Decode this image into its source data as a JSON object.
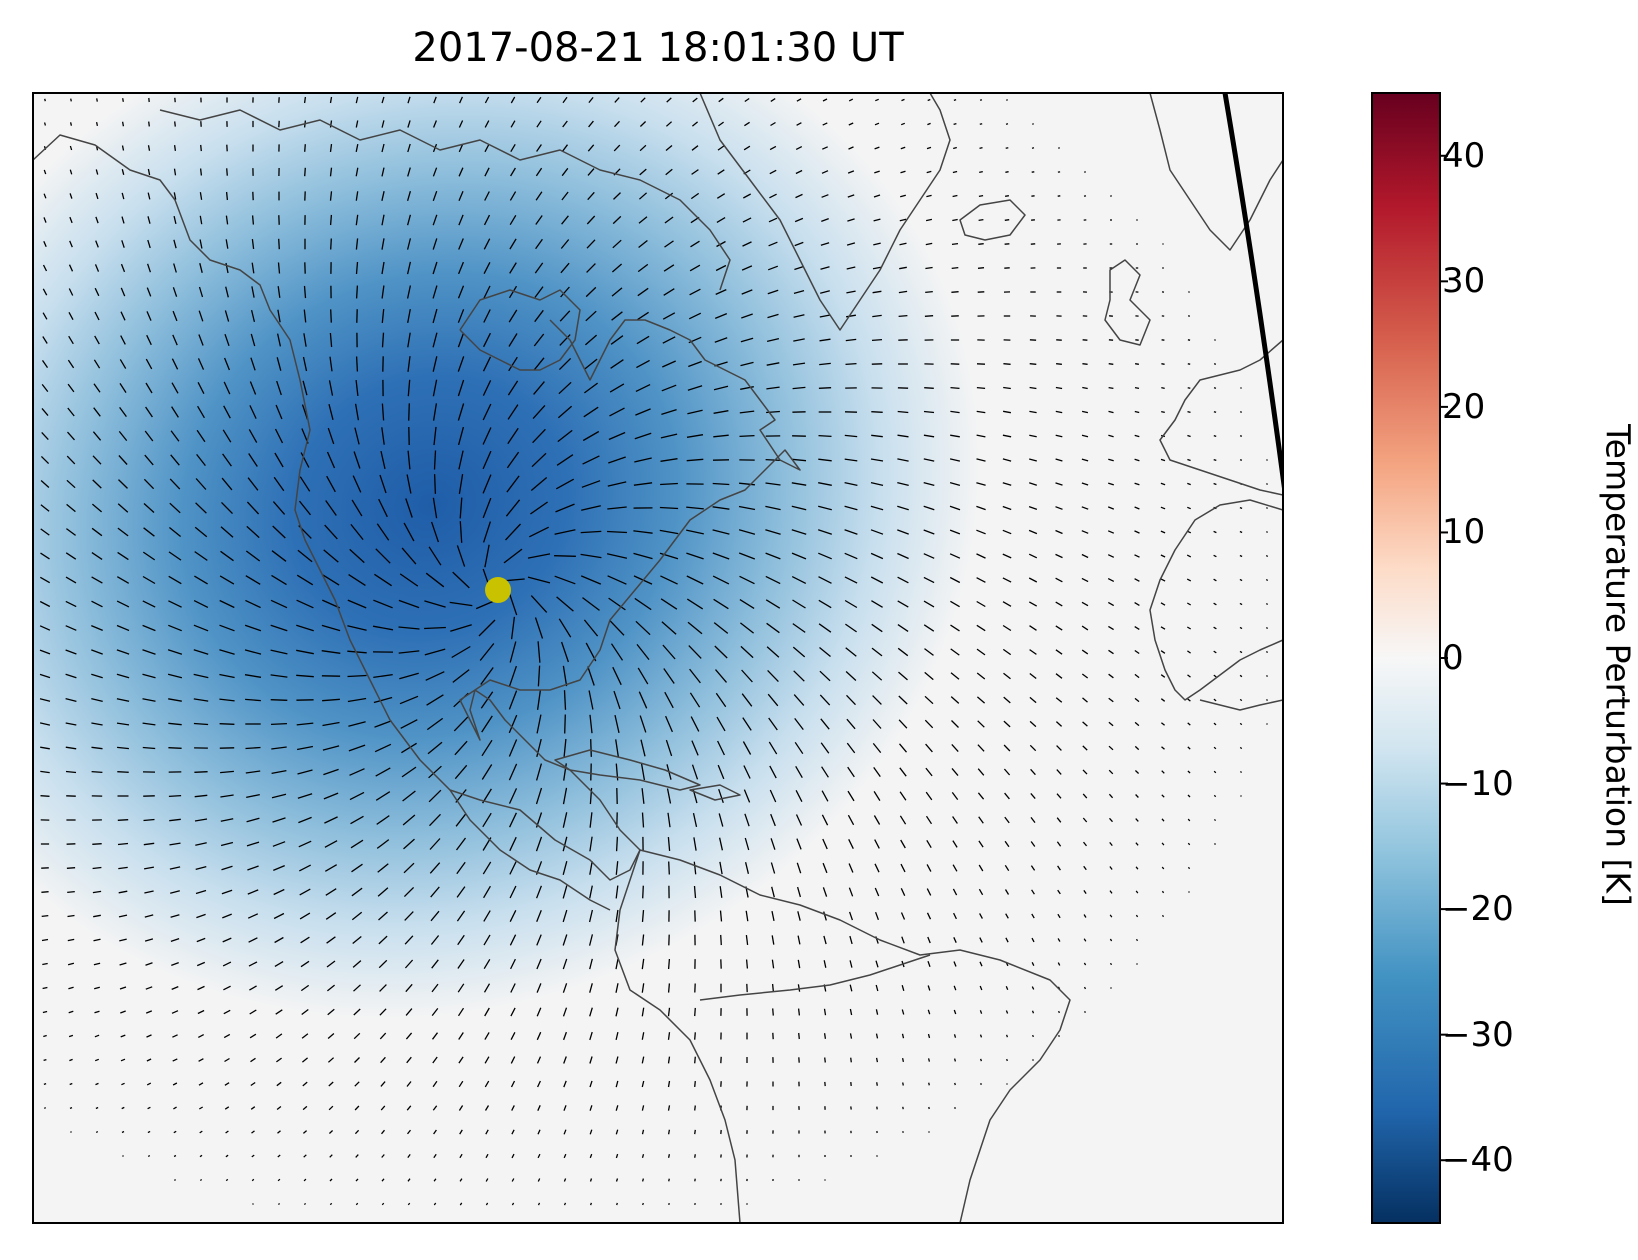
{
  "title": "2017-08-21 18:01:30 UT",
  "colorbar": {
    "label": "Temperature Perturbation [K]",
    "colormap": "RdBu_r",
    "range": [
      -45,
      45
    ],
    "ticks": [
      {
        "value": 40,
        "label": "40"
      },
      {
        "value": 30,
        "label": "30"
      },
      {
        "value": 20,
        "label": "20"
      },
      {
        "value": 10,
        "label": "10"
      },
      {
        "value": 0,
        "label": "0"
      },
      {
        "value": -10,
        "label": "−10"
      },
      {
        "value": -20,
        "label": "−20"
      },
      {
        "value": -30,
        "label": "−30"
      },
      {
        "value": -40,
        "label": "−40"
      }
    ]
  },
  "map": {
    "perturbation_center_marker_color": "#c8c200",
    "minimum_perturbation_K": -38,
    "coastline_color": "#444444",
    "terminator_color": "#000000",
    "background_color": "#f4f4f4"
  }
}
